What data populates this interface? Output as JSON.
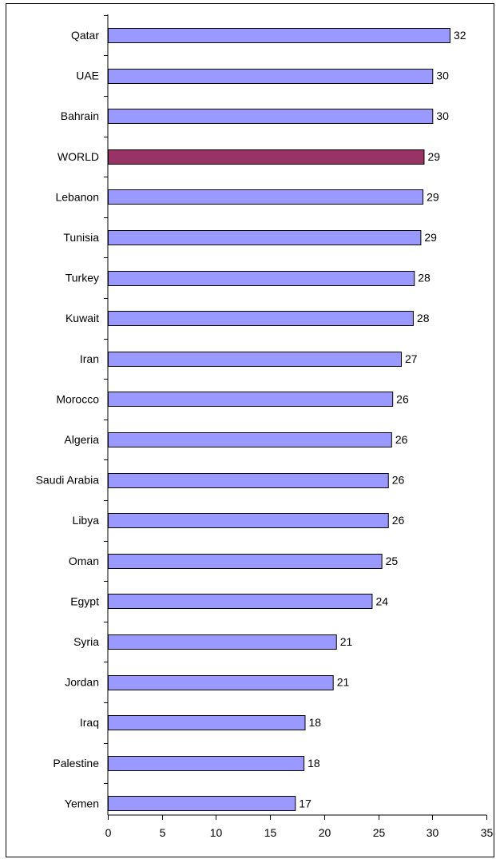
{
  "chart_data": {
    "type": "bar",
    "orientation": "horizontal",
    "categories": [
      "Qatar",
      "UAE",
      "Bahrain",
      "WORLD",
      "Lebanon",
      "Tunisia",
      "Turkey",
      "Kuwait",
      "Iran",
      "Morocco",
      "Algeria",
      "Saudi Arabia",
      "Libya",
      "Oman",
      "Egypt",
      "Syria",
      "Jordan",
      "Iraq",
      "Palestine",
      "Yemen"
    ],
    "values": [
      31.6,
      30.0,
      30.0,
      29.2,
      29.1,
      28.9,
      28.3,
      28.2,
      27.1,
      26.3,
      26.2,
      25.9,
      25.9,
      25.3,
      24.4,
      21.1,
      20.8,
      18.2,
      18.1,
      17.3
    ],
    "data_labels": [
      "32",
      "30",
      "30",
      "29",
      "29",
      "29",
      "28",
      "28",
      "27",
      "26",
      "26",
      "26",
      "26",
      "25",
      "24",
      "21",
      "21",
      "18",
      "18",
      "17"
    ],
    "highlight_category": "WORLD",
    "xlim": [
      0,
      35
    ],
    "xticks": [
      "0",
      "5",
      "10",
      "15",
      "20",
      "25",
      "30",
      "35"
    ],
    "title": "",
    "xlabel": "",
    "ylabel": "",
    "grid": false,
    "colors": {
      "bar": "#9999ff",
      "highlight": "#993366",
      "outline": "#000000"
    }
  }
}
